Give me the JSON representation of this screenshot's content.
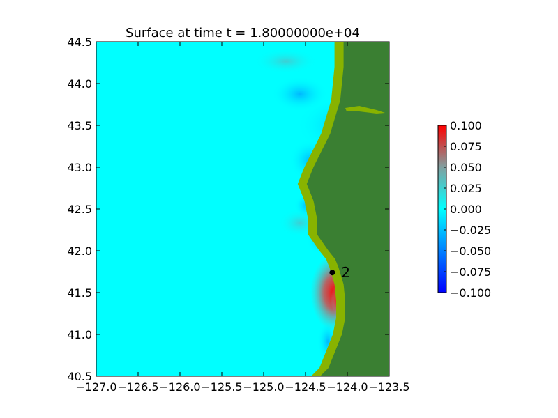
{
  "chart_data": {
    "type": "heatmap",
    "title": "Surface at time t = 1.80000000e+04",
    "xlabel": "",
    "ylabel": "",
    "xlim": [
      -127.0,
      -123.5
    ],
    "ylim": [
      40.5,
      44.5
    ],
    "x_ticks": [
      -127.0,
      -126.5,
      -126.0,
      -125.5,
      -125.0,
      -124.5,
      -124.0,
      -123.5
    ],
    "x_tick_labels": [
      "−127.0",
      "−126.5",
      "−126.0",
      "−125.5",
      "−125.0",
      "−124.5",
      "−124.0",
      "−123.5"
    ],
    "y_ticks": [
      40.5,
      41.0,
      41.5,
      42.0,
      42.5,
      43.0,
      43.5,
      44.0,
      44.5
    ],
    "y_tick_labels": [
      "40.5",
      "41.0",
      "41.5",
      "42.0",
      "42.5",
      "43.0",
      "43.5",
      "44.0",
      "44.5"
    ],
    "colorbar": {
      "min": -0.1,
      "max": 0.1,
      "ticks": [
        0.1,
        0.075,
        0.05,
        0.025,
        0.0,
        -0.025,
        -0.05,
        -0.075,
        -0.1
      ],
      "tick_labels": [
        "0.100",
        "0.075",
        "0.050",
        "0.025",
        "0.000",
        "−0.025",
        "−0.050",
        "−0.075",
        "−0.100"
      ],
      "colors": [
        "#0000ff",
        "#00ffff",
        "#ff0000"
      ]
    },
    "gauges": [
      {
        "label": "2",
        "lon": -124.18,
        "lat": 41.74
      }
    ],
    "colors": {
      "sea_level": "#00ffff",
      "land": "#3a7f32",
      "coastal_land": "#88b300",
      "positive_anomaly": "#ff0000",
      "negative_anomaly": "#0099ff"
    },
    "coastline": [
      [
        -124.12,
        44.5
      ],
      [
        -124.12,
        44.2
      ],
      [
        -124.14,
        44.0
      ],
      [
        -124.16,
        43.8
      ],
      [
        -124.22,
        43.6
      ],
      [
        -124.28,
        43.4
      ],
      [
        -124.38,
        43.2
      ],
      [
        -124.48,
        43.0
      ],
      [
        -124.56,
        42.8
      ],
      [
        -124.48,
        42.6
      ],
      [
        -124.44,
        42.4
      ],
      [
        -124.44,
        42.2
      ],
      [
        -124.3,
        42.0
      ],
      [
        -124.22,
        41.9
      ],
      [
        -124.18,
        41.8
      ],
      [
        -124.12,
        41.6
      ],
      [
        -124.1,
        41.4
      ],
      [
        -124.1,
        41.2
      ],
      [
        -124.14,
        41.0
      ],
      [
        -124.22,
        40.8
      ],
      [
        -124.3,
        40.6
      ],
      [
        -124.4,
        40.5
      ]
    ],
    "grid": false
  }
}
